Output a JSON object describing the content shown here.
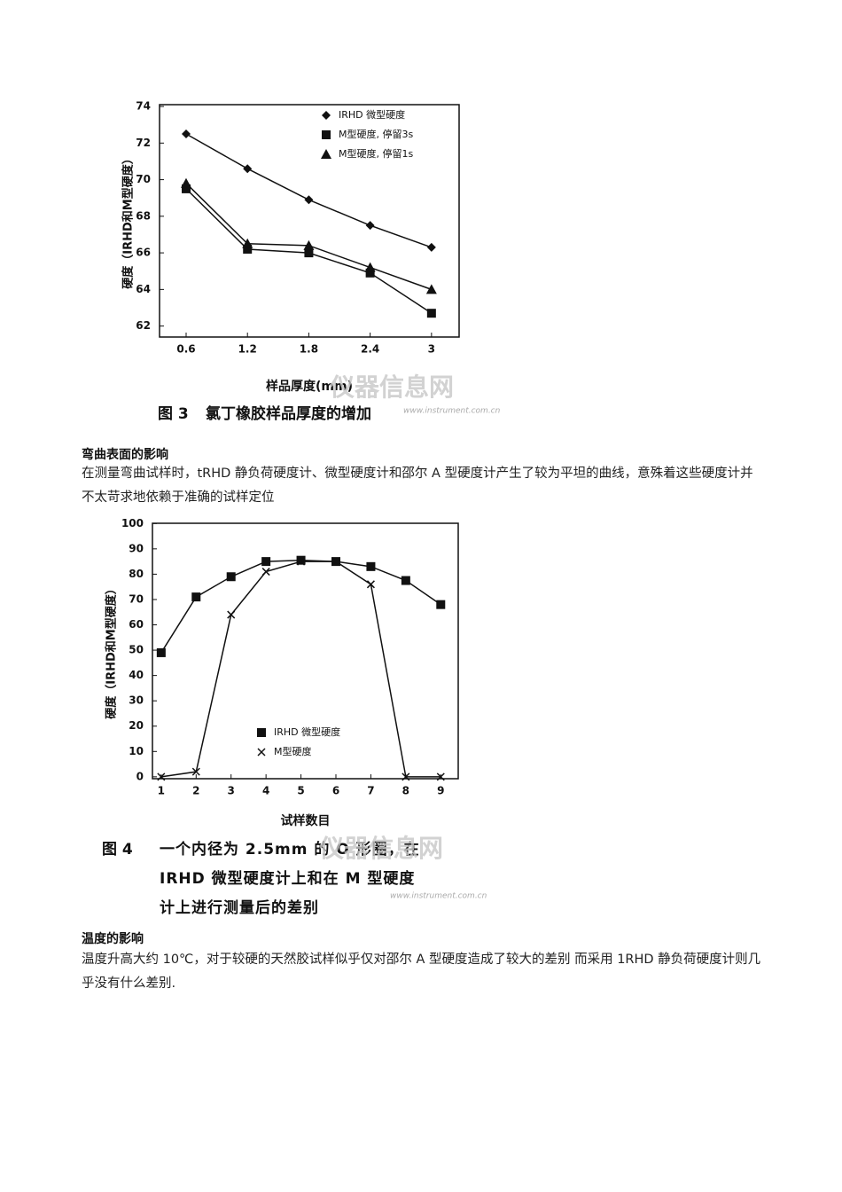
{
  "chart_data": [
    {
      "type": "line",
      "y_label": "硬度（IRHD和M型硬度）",
      "x_label": "样品厚度(mm)",
      "caption_number": "图 3",
      "caption": "氯丁橡胶样品厚度的增加",
      "x": [
        0.6,
        1.2,
        1.8,
        2.4,
        3
      ],
      "xlim": [
        0.34,
        3.27
      ],
      "xticks": [
        0.6,
        1.2,
        1.8,
        2.4,
        3
      ],
      "ylim": [
        61.4,
        74.1
      ],
      "yticks": [
        62,
        64,
        66,
        68,
        70,
        72,
        74
      ],
      "series": [
        {
          "name": "IRHD 微型硬度",
          "color": "#111111",
          "marker": "diamond",
          "values": [
            72.5,
            70.6,
            68.9,
            67.5,
            66.3
          ]
        },
        {
          "name": "M型硬度, 停留3s",
          "color": "#111111",
          "marker": "square",
          "values": [
            69.5,
            66.2,
            66.0,
            64.9,
            62.7
          ]
        },
        {
          "name": "M型硬度, 停留1s",
          "color": "#111111",
          "marker": "triangle",
          "values": [
            69.8,
            66.5,
            66.4,
            65.2,
            64.0
          ]
        }
      ]
    },
    {
      "type": "line",
      "y_label": "硬度（IRHD和M型硬度）",
      "x_label": "试样数目",
      "caption_number": "图 4",
      "caption_lines": [
        "一个内径为 2.5mm 的 O 形圈，在",
        "IRHD 微型硬度计上和在 M 型硬度",
        "计上进行测量后的差别"
      ],
      "x": [
        1,
        2,
        3,
        4,
        5,
        6,
        7,
        8,
        9
      ],
      "xlim": [
        0.75,
        9.5
      ],
      "xticks": [
        1,
        2,
        3,
        4,
        5,
        6,
        7,
        8,
        9
      ],
      "ylim": [
        -0.75,
        100.1
      ],
      "yticks": [
        0,
        10,
        20,
        30,
        40,
        50,
        60,
        70,
        80,
        90,
        100
      ],
      "series": [
        {
          "name": "IRHD 微型硬度",
          "color": "#111111",
          "marker": "square",
          "values": [
            49,
            71,
            79,
            85,
            85.5,
            85,
            83,
            77.5,
            68
          ]
        },
        {
          "name": "M型硬度",
          "color": "#111111",
          "marker": "x",
          "values": [
            0,
            2,
            64,
            81,
            85,
            85,
            76,
            0,
            0
          ]
        }
      ]
    }
  ],
  "watermark": {
    "name": "仪器信息网",
    "url": "www.instrument.com.cn"
  },
  "sections": [
    {
      "heading": "弯曲表面的影响",
      "paragraph": "在测量弯曲试样时，tRHD 静负荷硬度计、微型硬度计和邵尔 A 型硬度计产生了较为平坦的曲线，意殊着这些硬度计并不太苛求地依赖于准确的试样定位"
    },
    {
      "heading": "温度的影响",
      "paragraph": "温度升高大约 10℃，对于较硬的天然胶试样似乎仅对邵尔 A 型硬度造成了较大的差别 而采用 1RHD 静负荷硬度计则几乎没有什么差别."
    }
  ]
}
